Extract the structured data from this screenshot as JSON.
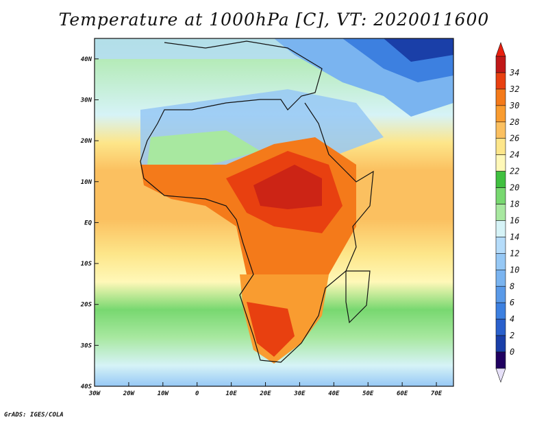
{
  "title": "Temperature at 1000hPa [C], VT: 2020011600",
  "credit": "GrADS: IGES/COLA",
  "map": {
    "lon_range": [
      -30,
      75
    ],
    "lat_range": [
      -40,
      45
    ],
    "lon_ticks": [
      {
        "value": -30,
        "label": "30W"
      },
      {
        "value": -20,
        "label": "20W"
      },
      {
        "value": -10,
        "label": "10W"
      },
      {
        "value": 0,
        "label": "0"
      },
      {
        "value": 10,
        "label": "10E"
      },
      {
        "value": 20,
        "label": "20E"
      },
      {
        "value": 30,
        "label": "30E"
      },
      {
        "value": 40,
        "label": "40E"
      },
      {
        "value": 50,
        "label": "50E"
      },
      {
        "value": 60,
        "label": "60E"
      },
      {
        "value": 70,
        "label": "70E"
      }
    ],
    "lat_ticks": [
      {
        "value": 40,
        "label": "40N"
      },
      {
        "value": 30,
        "label": "30N"
      },
      {
        "value": 20,
        "label": "20N"
      },
      {
        "value": 10,
        "label": "10N"
      },
      {
        "value": 0,
        "label": "EQ"
      },
      {
        "value": -10,
        "label": "10S"
      },
      {
        "value": -20,
        "label": "20S"
      },
      {
        "value": -30,
        "label": "30S"
      },
      {
        "value": -40,
        "label": "40S"
      }
    ]
  },
  "colorbar": {
    "levels": [
      0,
      2,
      4,
      6,
      8,
      10,
      12,
      14,
      16,
      18,
      20,
      22,
      24,
      26,
      28,
      30,
      32,
      34
    ],
    "colors": [
      "#200060",
      "#1a3fa8",
      "#2a60cc",
      "#3d80e0",
      "#5a9ae8",
      "#7ab4f0",
      "#96c8f5",
      "#b5dcfa",
      "#d6f3f7",
      "#a8e8a0",
      "#78d870",
      "#40c040",
      "#fff8b8",
      "#fde68a",
      "#fbc060",
      "#f99c30",
      "#f47a1a",
      "#e84010",
      "#c01818"
    ],
    "under_color": "#e6e0f8",
    "over_color": "#e82010"
  }
}
